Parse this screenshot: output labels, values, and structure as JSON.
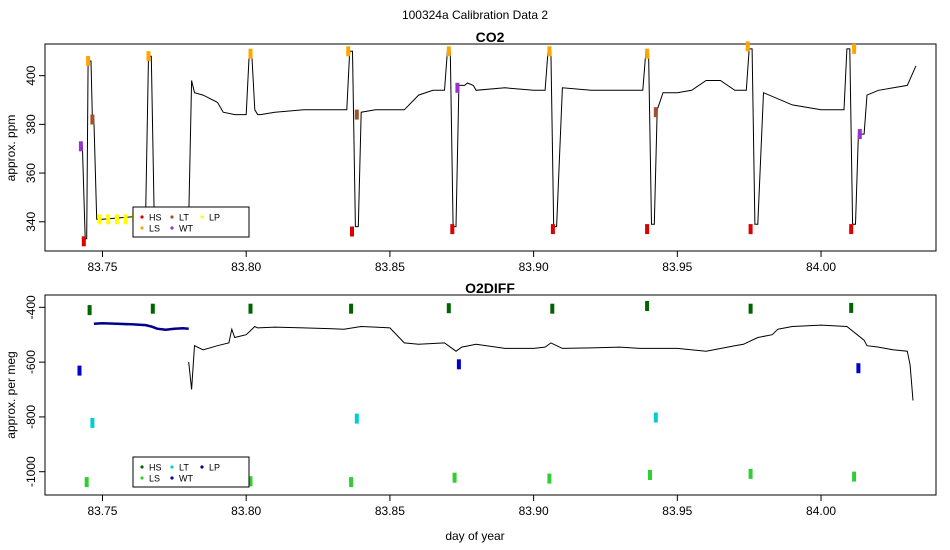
{
  "figure": {
    "title": "100324a   Calibration Data 2",
    "xlabel": "day of year"
  },
  "chart_data": [
    {
      "type": "line",
      "title": "CO2",
      "ylabel": "approx. ppm",
      "xlim": [
        83.73,
        84.04
      ],
      "ylim": [
        328,
        413
      ],
      "x_ticks": [
        83.75,
        83.8,
        83.85,
        83.9,
        83.95,
        84.0
      ],
      "x_tick_labels": [
        "83.75",
        "83.80",
        "83.85",
        "83.90",
        "83.95",
        "84.00"
      ],
      "y_ticks": [
        340,
        360,
        380,
        400
      ],
      "y_tick_labels": [
        "340",
        "360",
        "380",
        "400"
      ],
      "legend": {
        "position": "bottom-left",
        "entries": [
          {
            "label": "HS",
            "color": "#dd0000"
          },
          {
            "label": "LS",
            "color": "#ffa500"
          },
          {
            "label": "LT",
            "color": "#a0522d"
          },
          {
            "label": "WT",
            "color": "#9932cc"
          },
          {
            "label": "LP",
            "color": "#ffff00"
          }
        ]
      },
      "series": [
        {
          "color": "#000000",
          "x": [
            83.7425,
            83.743,
            83.744,
            83.7445,
            83.745,
            83.746,
            83.7465,
            83.747,
            83.748,
            83.749,
            83.75,
            83.76,
            83.765,
            83.766,
            83.767,
            83.768,
            83.778,
            83.78,
            83.781,
            83.782,
            83.785,
            83.79,
            83.792,
            83.796,
            83.8,
            83.801,
            83.802,
            83.803,
            83.804,
            83.805,
            83.81,
            83.82,
            83.83,
            83.835,
            83.836,
            83.837,
            83.838,
            83.839,
            83.84,
            83.845,
            83.85,
            83.855,
            83.86,
            83.865,
            83.869,
            83.87,
            83.871,
            83.872,
            83.873,
            83.874,
            83.876,
            83.877,
            83.879,
            83.88,
            83.89,
            83.9,
            83.904,
            83.905,
            83.906,
            83.907,
            83.908,
            83.91,
            83.92,
            83.93,
            83.938,
            83.939,
            83.94,
            83.941,
            83.942,
            83.943,
            83.945,
            83.95,
            83.955,
            83.96,
            83.965,
            83.97,
            83.974,
            83.975,
            83.976,
            83.977,
            83.978,
            83.98,
            83.99,
            84.0,
            84.008,
            84.009,
            84.01,
            84.011,
            84.012,
            84.013,
            84.015,
            84.016,
            84.02,
            84.03,
            84.033
          ],
          "y": [
            371,
            371,
            333,
            333,
            406,
            406,
            382,
            382,
            341,
            341,
            341,
            342,
            342,
            408,
            408,
            342,
            342,
            341,
            398,
            393,
            392,
            389,
            385,
            384,
            384,
            408,
            408,
            386,
            384,
            384,
            385,
            386,
            386,
            386,
            410,
            410,
            338,
            338,
            385,
            386,
            386,
            386,
            392,
            394,
            394,
            410,
            410,
            338,
            338,
            396,
            396,
            397,
            396,
            394,
            395,
            394,
            394,
            410,
            410,
            338,
            338,
            395,
            394,
            394,
            394,
            409,
            409,
            339,
            339,
            386,
            393,
            393,
            394,
            398,
            398,
            394,
            394,
            411,
            411,
            339,
            339,
            393,
            388,
            386,
            386,
            411,
            411,
            339,
            339,
            376,
            376,
            392,
            394,
            396,
            404
          ]
        },
        {
          "color": "#dd0000",
          "x": [
            83.7435,
            83.8368,
            83.8717,
            83.9067,
            83.9395,
            83.9755,
            84.0105
          ],
          "y": [
            332,
            336,
            337,
            337,
            337,
            337,
            337
          ]
        },
        {
          "color": "#ffa500",
          "x": [
            83.745,
            83.766,
            83.8015,
            83.8355,
            83.8705,
            83.9055,
            83.9395,
            83.9745,
            84.0115
          ],
          "y": [
            406,
            408,
            409,
            410,
            410,
            410,
            409,
            412,
            411
          ]
        },
        {
          "color": "#a0522d",
          "x": [
            83.7465,
            83.8385,
            83.9425
          ],
          "y": [
            382,
            384,
            385
          ]
        },
        {
          "color": "#9932cc",
          "x": [
            83.7425,
            83.8735,
            84.0135
          ],
          "y": [
            371,
            395,
            376
          ]
        },
        {
          "color": "#ffff00",
          "x": [
            83.749,
            83.752,
            83.755,
            83.758,
            83.761,
            83.764
          ],
          "y": [
            341,
            341,
            341,
            341,
            342,
            341
          ]
        }
      ]
    },
    {
      "type": "line",
      "title": "O2DIFF",
      "ylabel": "approx. per meg",
      "xlim": [
        83.73,
        84.04
      ],
      "ylim": [
        -1085,
        -355
      ],
      "x_ticks": [
        83.75,
        83.8,
        83.85,
        83.9,
        83.95,
        84.0
      ],
      "x_tick_labels": [
        "83.75",
        "83.80",
        "83.85",
        "83.90",
        "83.95",
        "84.00"
      ],
      "y_ticks": [
        -1000,
        -800,
        -600,
        -400
      ],
      "y_tick_labels": [
        "-1000",
        "-800",
        "-600",
        "-400"
      ],
      "legend": {
        "position": "bottom-left",
        "entries": [
          {
            "label": "HS",
            "color": "#006400"
          },
          {
            "label": "LS",
            "color": "#32cd32"
          },
          {
            "label": "LT",
            "color": "#00ced1"
          },
          {
            "label": "WT",
            "color": "#0000cd"
          },
          {
            "label": "LP",
            "color": "#00008b"
          }
        ]
      },
      "series": [
        {
          "color": "#000000",
          "x": [
            83.78,
            83.781,
            83.782,
            83.785,
            83.79,
            83.794,
            83.795,
            83.796,
            83.8,
            83.803,
            83.804,
            83.81,
            83.82,
            83.83,
            83.834,
            83.84,
            83.845,
            83.85,
            83.855,
            83.86,
            83.869,
            83.873,
            83.875,
            83.88,
            83.89,
            83.9,
            83.904,
            83.906,
            83.91,
            83.92,
            83.93,
            83.937,
            83.944,
            83.95,
            83.96,
            83.97,
            83.973,
            83.978,
            83.983,
            83.985,
            83.99,
            84.0,
            84.009,
            84.015,
            84.016,
            84.02,
            84.025,
            84.03,
            84.031,
            84.032
          ],
          "y": [
            -600,
            -700,
            -540,
            -555,
            -540,
            -530,
            -480,
            -510,
            -500,
            -470,
            -475,
            -472,
            -475,
            -478,
            -480,
            -470,
            -472,
            -475,
            -530,
            -535,
            -530,
            -560,
            -545,
            -535,
            -550,
            -550,
            -545,
            -530,
            -550,
            -548,
            -545,
            -550,
            -550,
            -550,
            -560,
            -540,
            -535,
            -510,
            -500,
            -480,
            -470,
            -465,
            -470,
            -520,
            -540,
            -545,
            -555,
            -560,
            -610,
            -740
          ]
        },
        {
          "color": "#00008b",
          "x": [
            83.747,
            83.75,
            83.755,
            83.76,
            83.765,
            83.767,
            83.769,
            83.772,
            83.775,
            83.778,
            83.78
          ],
          "y": [
            -460,
            -458,
            -460,
            -462,
            -465,
            -470,
            -478,
            -482,
            -478,
            -476,
            -478
          ]
        },
        {
          "color": "#006400",
          "x": [
            83.7455,
            83.7675,
            83.8015,
            83.8365,
            83.8705,
            83.9065,
            83.9395,
            83.9755,
            84.0105
          ],
          "y": [
            -410,
            -405,
            -405,
            -405,
            -403,
            -405,
            -395,
            -405,
            -402
          ]
        },
        {
          "color": "#32cd32",
          "x": [
            83.7445,
            83.8015,
            83.8365,
            83.8725,
            83.9055,
            83.9405,
            83.9755,
            84.0115
          ],
          "y": [
            -1038,
            -1035,
            -1038,
            -1022,
            -1025,
            -1012,
            -1008,
            -1018
          ]
        },
        {
          "color": "#00ced1",
          "x": [
            83.7465,
            83.8385,
            83.9425
          ],
          "y": [
            -822,
            -806,
            -802
          ]
        },
        {
          "color": "#0000cd",
          "x": [
            83.742,
            83.874,
            84.013
          ],
          "y": [
            -631,
            -608,
            -622
          ]
        }
      ]
    }
  ]
}
